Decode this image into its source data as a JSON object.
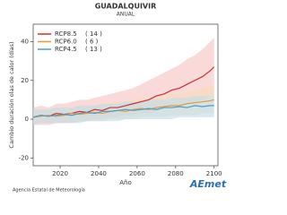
{
  "chart_data": {
    "type": "line",
    "title": "GUADALQUIVIR",
    "subtitle": "ANUAL",
    "x_label": "Año",
    "y_label": "Cambio duración olas de calor (días)",
    "x": [
      2006,
      2010,
      2014,
      2018,
      2022,
      2026,
      2030,
      2034,
      2038,
      2042,
      2046,
      2050,
      2054,
      2058,
      2062,
      2066,
      2070,
      2074,
      2078,
      2082,
      2086,
      2090,
      2094,
      2098,
      2100
    ],
    "series": [
      {
        "name": "RCP8.5",
        "count": {
          "value": 14,
          "label": "( 14 )"
        },
        "color": "#c8312f",
        "band_color": "#f5c2c0",
        "values": [
          1,
          2,
          1.5,
          3,
          2.5,
          3,
          4,
          3.5,
          5,
          4.5,
          6,
          6,
          7,
          8,
          9,
          10,
          12,
          13,
          15,
          16,
          18,
          20,
          22,
          25,
          27
        ],
        "lower": [
          -3,
          -3,
          -3,
          -2,
          -2,
          -2,
          -1,
          -1,
          0,
          0,
          1,
          1,
          2,
          2,
          3,
          3,
          4,
          5,
          6,
          6,
          8,
          9,
          10,
          12,
          12
        ],
        "upper": [
          6,
          7,
          6,
          8,
          8,
          9,
          10,
          10,
          11,
          12,
          13,
          14,
          15,
          16,
          18,
          20,
          22,
          24,
          26,
          28,
          31,
          33,
          36,
          40,
          42
        ]
      },
      {
        "name": "RCP6.0",
        "count": {
          "value": 6,
          "label": "(   6 )"
        },
        "color": "#e89a3a",
        "band_color": "#f7dcb7",
        "values": [
          1,
          1.5,
          2,
          1.5,
          2,
          3,
          2.5,
          3,
          3.5,
          3,
          4,
          4.5,
          4,
          5,
          5.5,
          5,
          6,
          6.5,
          7,
          7,
          8,
          8.5,
          9,
          9.5,
          10
        ],
        "lower": [
          -2,
          -2,
          -2,
          -2,
          -2,
          -1,
          -1,
          -1,
          -1,
          -1,
          0,
          0,
          0,
          0,
          1,
          1,
          1,
          1,
          2,
          2,
          2,
          2,
          3,
          3,
          3
        ],
        "upper": [
          4,
          5,
          5,
          5,
          6,
          6,
          7,
          7,
          7,
          8,
          8,
          9,
          9,
          10,
          10,
          11,
          11,
          12,
          13,
          13,
          14,
          15,
          16,
          17,
          17
        ]
      },
      {
        "name": "RCP4.5",
        "count": {
          "value": 13,
          "label": "( 13 )"
        },
        "color": "#4f9cc6",
        "band_color": "#bcdcec",
        "values": [
          1,
          2,
          1.5,
          2,
          2.5,
          2,
          3,
          3.5,
          3,
          4,
          4,
          4.5,
          5,
          4.5,
          5,
          5.5,
          5,
          6,
          6,
          6.5,
          6,
          7,
          6.5,
          7,
          7
        ],
        "lower": [
          -3,
          -2,
          -2,
          -2,
          -2,
          -2,
          -2,
          -1,
          -1,
          -1,
          -1,
          -1,
          0,
          0,
          0,
          0,
          0,
          0,
          0,
          1,
          1,
          1,
          1,
          1,
          1
        ],
        "upper": [
          5,
          5,
          5,
          6,
          6,
          6,
          7,
          7,
          7,
          8,
          8,
          8,
          9,
          9,
          9,
          10,
          10,
          10,
          11,
          11,
          11,
          12,
          12,
          12,
          12
        ]
      }
    ],
    "xlim": [
      2006,
      2102
    ],
    "ylim": [
      -24,
      49
    ],
    "xticks": [
      2020,
      2040,
      2060,
      2080,
      2100
    ],
    "yticks": [
      -20,
      0,
      20,
      40
    ],
    "footer": "Agencia Estatal de Meteorología",
    "logo": "AEmet"
  }
}
